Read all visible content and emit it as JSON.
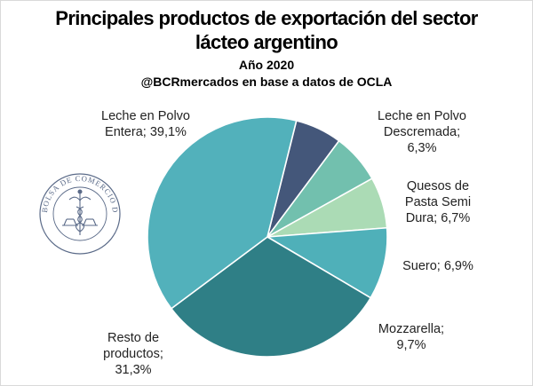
{
  "chart_data": {
    "type": "pie",
    "title": "Principales productos de exportación del sector lácteo argentino",
    "title_lines": [
      "Principales productos de exportación del sector",
      "lácteo argentino"
    ],
    "subtitle": "Año 2020",
    "source": "@BCRmercados en base a datos de OCLA",
    "categories": [
      "Leche en Polvo Descremada",
      "Quesos de Pasta Semi Dura",
      "Suero",
      "Mozzarella",
      "Resto de productos",
      "Leche en Polvo Entera"
    ],
    "values": [
      6.3,
      6.7,
      6.9,
      9.7,
      31.3,
      39.1
    ],
    "slices": [
      {
        "name": "Leche en Polvo Descremada",
        "value": 6.3,
        "color": "#44577a",
        "label_lines": [
          "Leche en Polvo",
          "Descremada;",
          "6,3%"
        ]
      },
      {
        "name": "Quesos de Pasta Semi Dura",
        "value": 6.7,
        "color": "#72c0ae",
        "label_lines": [
          "Quesos de",
          "Pasta Semi",
          "Dura; 6,7%"
        ]
      },
      {
        "name": "Suero",
        "value": 6.9,
        "color": "#abdbb5",
        "label_lines": [
          "Suero; 6,9%"
        ]
      },
      {
        "name": "Mozzarella",
        "value": 9.7,
        "color": "#4fb0b9",
        "label_lines": [
          "Mozzarella;",
          "9,7%"
        ]
      },
      {
        "name": "Resto de productos",
        "value": 31.3,
        "color": "#2f7f86",
        "label_lines": [
          "Resto de",
          "productos;",
          "31,3%"
        ]
      },
      {
        "name": "Leche en Polvo Entera",
        "value": 39.1,
        "color": "#52b1bb",
        "label_lines": [
          "Leche en Polvo",
          "Entera; 39,1%"
        ]
      }
    ],
    "start_angle_deg": 14
  },
  "logo": {
    "text": "BOLSA DE COMERCIO DE ROSARIO",
    "color": "#5a6a88"
  }
}
